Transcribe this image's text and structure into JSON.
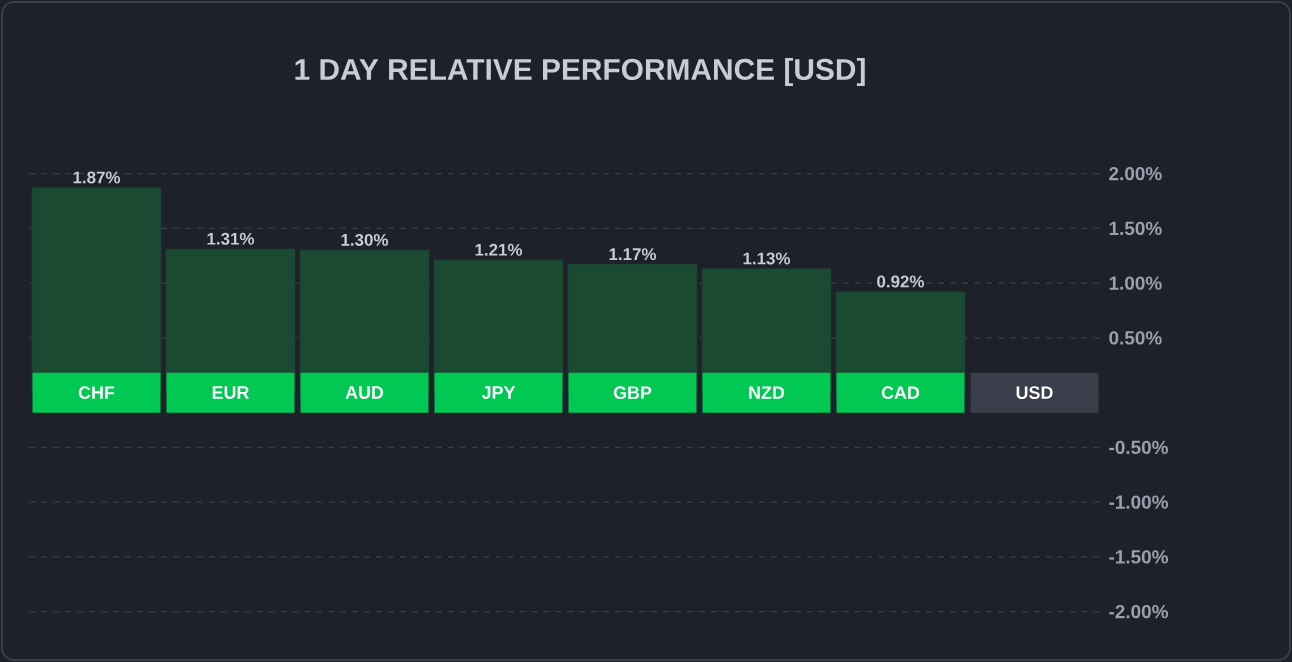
{
  "chart_data": {
    "type": "bar",
    "title": "1 DAY RELATIVE PERFORMANCE  [USD]",
    "categories": [
      "CHF",
      "EUR",
      "AUD",
      "JPY",
      "GBP",
      "NZD",
      "CAD",
      "USD"
    ],
    "values": [
      1.87,
      1.31,
      1.3,
      1.21,
      1.17,
      1.13,
      0.92,
      0
    ],
    "value_labels": [
      "1.87%",
      "1.31%",
      "1.30%",
      "1.21%",
      "1.17%",
      "1.13%",
      "0.92%",
      null
    ],
    "color": "#1b4a33",
    "ylim": [
      -2,
      2
    ],
    "yticks": [
      {
        "value": 2,
        "label": "2.00%"
      },
      {
        "value": 1.5,
        "label": "1.50%"
      },
      {
        "value": 1,
        "label": "1.00%"
      },
      {
        "value": 0.5,
        "label": "0.50%"
      },
      {
        "value": -0.5,
        "label": "-0.50%"
      },
      {
        "value": -1,
        "label": "-1.00%"
      },
      {
        "value": -1.5,
        "label": "-1.50%"
      },
      {
        "value": -2,
        "label": "-2.00%"
      }
    ],
    "grid": "y"
  }
}
